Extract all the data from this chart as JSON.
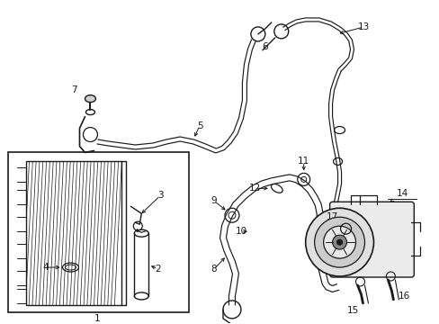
{
  "bg_color": "#ffffff",
  "line_color": "#1a1a1a",
  "lw_thick": 1.5,
  "lw_med": 1.0,
  "lw_thin": 0.7,
  "lw_pipe": 1.0,
  "label_fontsize": 7.5,
  "arrow_fontsize": 7.5
}
